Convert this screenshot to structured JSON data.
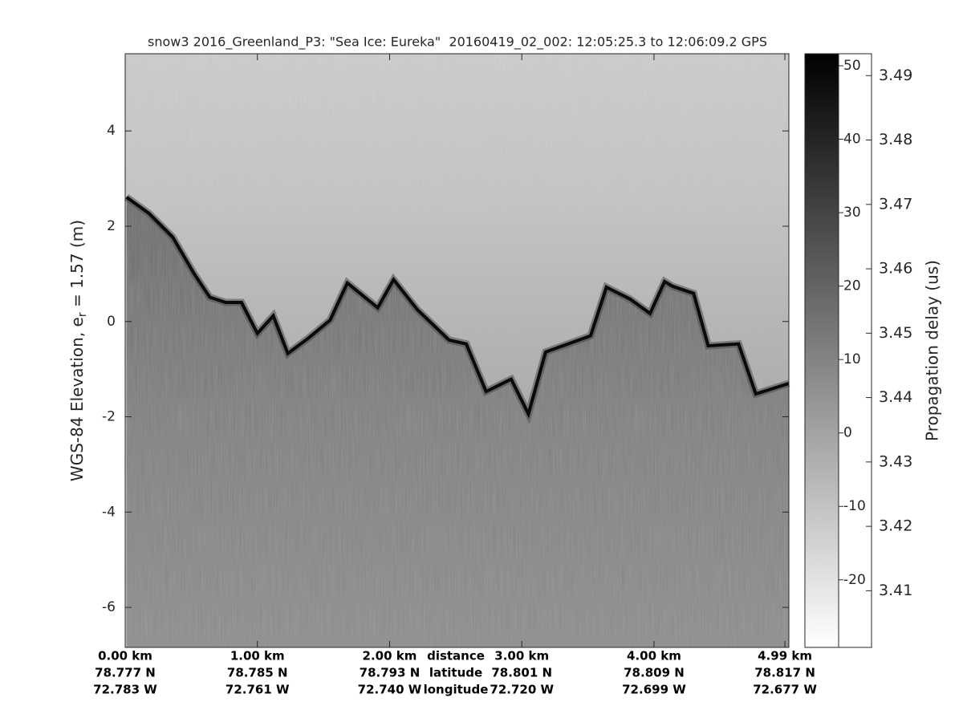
{
  "chart_data": {
    "type": "echogram",
    "title": "snow3 2016_Greenland_P3: \"Sea Ice: Eureka\"  20160419_02_002: 12:05:25.3 to 12:06:09.2 GPS",
    "ylabel": [
      "WGS-84 Elevation, e",
      "r",
      " = 1.57 (m)"
    ],
    "x": [
      0.01,
      0.18,
      0.36,
      0.52,
      0.64,
      0.76,
      0.88,
      1.0,
      1.12,
      1.23,
      1.39,
      1.55,
      1.68,
      1.91,
      2.03,
      2.21,
      2.45,
      2.58,
      2.73,
      2.92,
      3.05,
      3.18,
      3.52,
      3.64,
      3.82,
      3.97,
      4.08,
      4.14,
      4.3,
      4.41,
      4.64,
      4.77,
      5.02
    ],
    "values": [
      2.61,
      2.27,
      1.77,
      1.01,
      0.51,
      0.4,
      0.4,
      -0.25,
      0.12,
      -0.67,
      -0.34,
      0.03,
      0.81,
      0.29,
      0.88,
      0.25,
      -0.39,
      -0.47,
      -1.47,
      -1.21,
      -1.94,
      -0.64,
      -0.3,
      0.72,
      0.47,
      0.17,
      0.84,
      0.74,
      0.59,
      -0.51,
      -0.47,
      -1.52,
      -1.3
    ],
    "xlim": [
      0,
      5.02
    ],
    "ylim": [
      -6.84,
      5.62
    ],
    "yticks": [
      -6,
      -4,
      -2,
      0,
      2,
      4
    ],
    "xticks": [
      {
        "value": 0,
        "label": "0.00 km"
      },
      {
        "value": 1,
        "label": "1.00 km"
      },
      {
        "value": 2,
        "label": "2.00 km"
      },
      {
        "value": 3,
        "label": "3.00 km"
      },
      {
        "value": 4,
        "label": "4.00 km"
      },
      {
        "value": 4.99,
        "label": "4.99 km"
      }
    ],
    "xtick_latitudes": [
      "78.777 N",
      "78.785 N",
      "78.793 N",
      "78.801 N",
      "78.809 N",
      "78.817 N"
    ],
    "xtick_longitudes": [
      "72.783 W",
      "72.761 W",
      "72.740 W",
      "72.720 W",
      "72.699 W",
      "72.677 W"
    ],
    "xtick_row_labels": [
      "distance",
      "latitude",
      "longitude"
    ],
    "colormap": "gray",
    "colorbar": {
      "lim": [
        -29.2,
        51.64
      ],
      "ticks": [
        -20,
        -10,
        0,
        10,
        20,
        30,
        40,
        50
      ]
    },
    "y2label": "Propagation delay (us)",
    "y2lim": [
      3.4012,
      3.4934
    ],
    "y2ticks": [
      3.41,
      3.42,
      3.43,
      3.44,
      3.45,
      3.46,
      3.47,
      3.48,
      3.49
    ]
  }
}
